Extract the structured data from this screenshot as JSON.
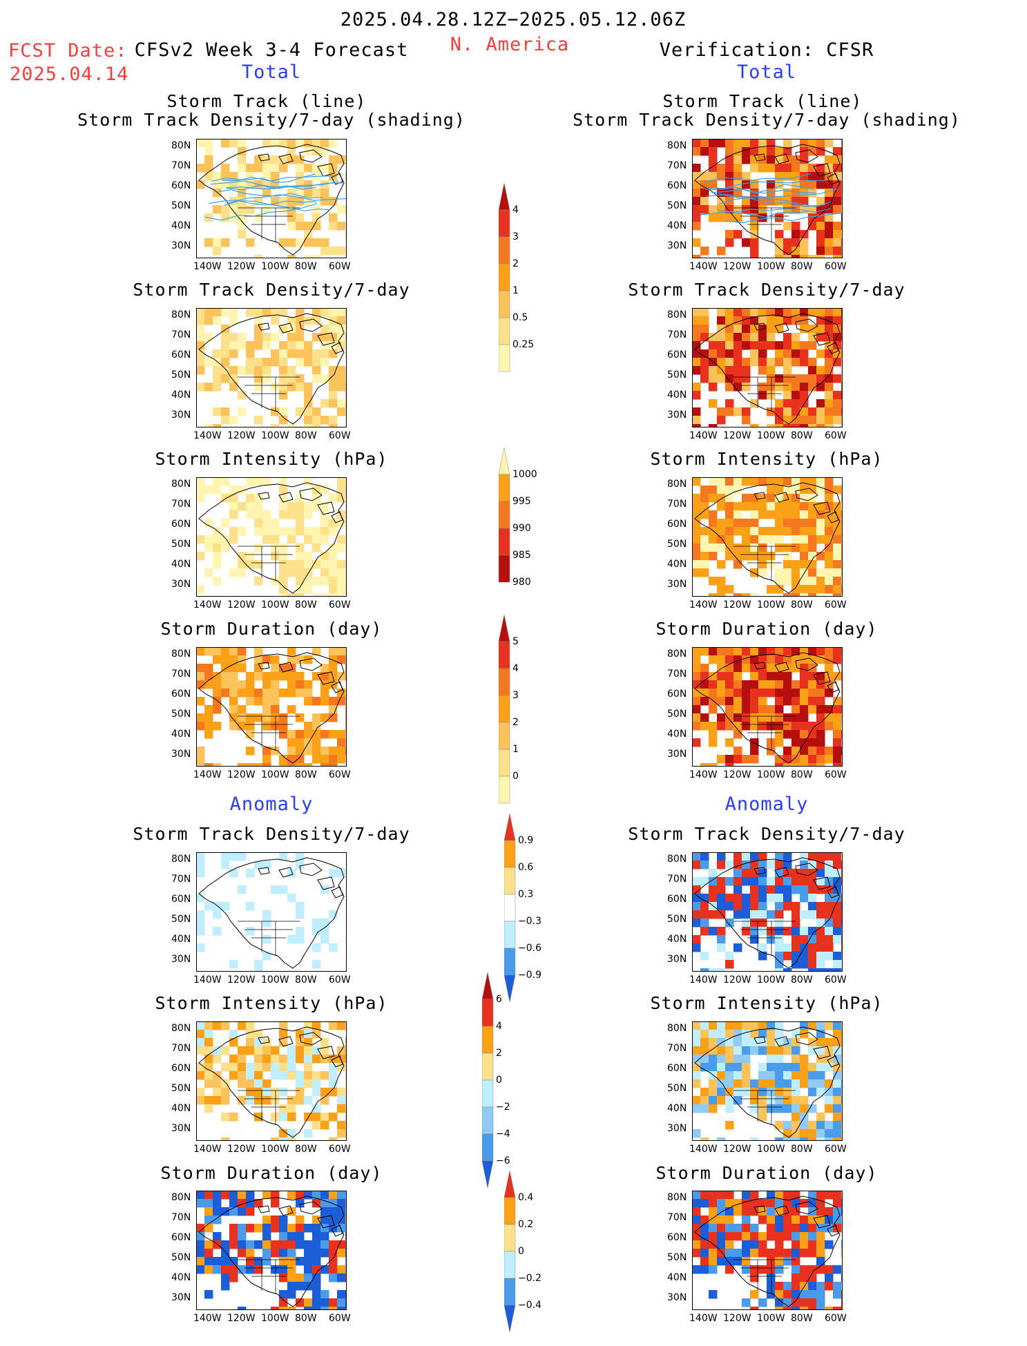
{
  "header": {
    "date_range": "2025.04.28.12Z−2025.05.12.06Z",
    "fcst_label": "FCST Date:",
    "fcst_date": "2025.04.14",
    "model_title": "CFSv2 Week 3-4 Forecast",
    "region": "N. America",
    "verification_title": "Verification: CFSR"
  },
  "sections": {
    "total": "Total",
    "anomaly": "Anomaly"
  },
  "panel_titles": {
    "track_line": "Storm Track (line)",
    "track_density_shading": "Storm Track Density/7-day (shading)",
    "track_density": "Storm Track Density/7-day",
    "intensity": "Storm Intensity (hPa)",
    "duration": "Storm Duration (day)"
  },
  "axes": {
    "lat_ticks": [
      "80N",
      "70N",
      "60N",
      "50N",
      "40N",
      "30N"
    ],
    "lon_ticks": [
      "140W",
      "120W",
      "100W",
      "80W",
      "60W"
    ]
  },
  "colorbars": {
    "track_density_total": [
      "4",
      "3",
      "2",
      "1",
      "0.5",
      "0.25"
    ],
    "intensity_total": [
      "1000",
      "995",
      "990",
      "985",
      "980"
    ],
    "duration_total": [
      "5",
      "4",
      "3",
      "2",
      "1",
      "0"
    ],
    "track_density_anomaly": [
      "0.9",
      "0.6",
      "0.3",
      "−0.3",
      "−0.6",
      "−0.9"
    ],
    "intensity_anomaly": [
      "6",
      "4",
      "2",
      "0",
      "−2",
      "−4",
      "−6"
    ],
    "duration_anomaly": [
      "0.4",
      "0.2",
      "0",
      "−0.2",
      "−0.4"
    ]
  },
  "colors": {
    "pale_yellow": "#fff5b0",
    "yellow": "#fde08a",
    "light_orange": "#fcc35a",
    "orange": "#fba117",
    "dark_orange": "#f5781e",
    "red": "#e8321e",
    "dark_red": "#b70e0e",
    "light_blue": "#bfeeff",
    "mid_blue": "#8fcbf5",
    "blue": "#4a9bea",
    "dark_blue": "#1c5ed8",
    "track_line": "#3aa0ea"
  }
}
